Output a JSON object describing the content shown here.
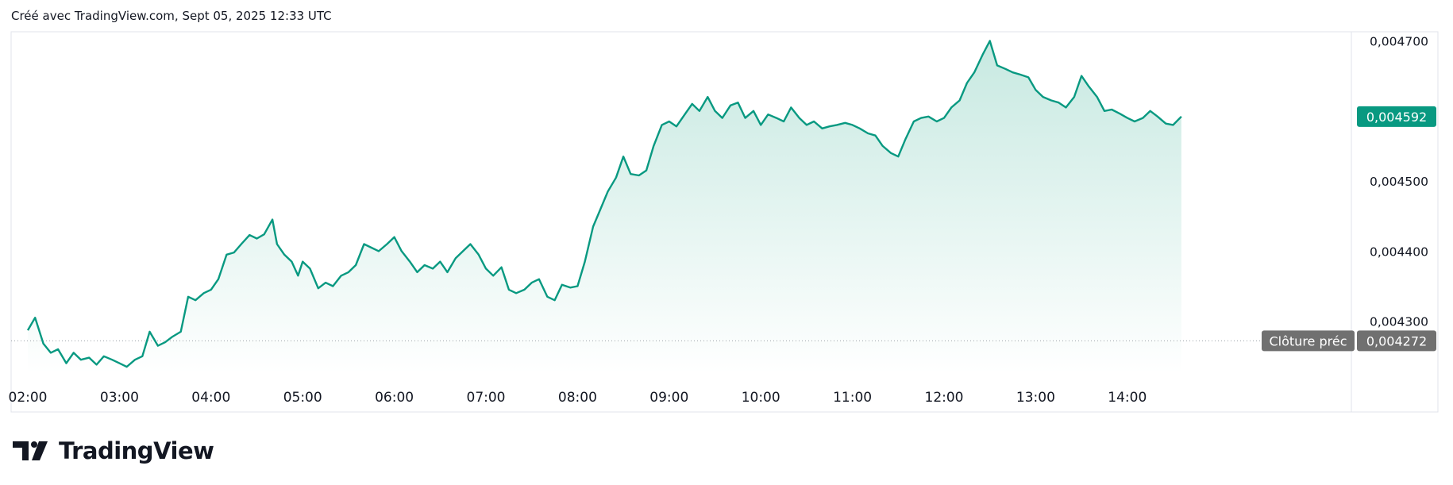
{
  "header": {
    "caption": "Créé avec TradingView.com, Sept 05, 2025 12:33 UTC"
  },
  "brand": {
    "name": "TradingView"
  },
  "colors": {
    "line": "#089981",
    "fill_top": "#c7e9e1",
    "fill_bottom": "#ffffff",
    "prev_close_tag": "#707070",
    "grid": "#e0e3eb"
  },
  "chart_data": {
    "type": "area",
    "title": "",
    "xlabel": "",
    "ylabel": "",
    "x_ticks": [
      "02:00",
      "03:00",
      "04:00",
      "05:00",
      "06:00",
      "07:00",
      "08:00",
      "09:00",
      "10:00",
      "11:00",
      "12:00",
      "13:00",
      "14:00"
    ],
    "y_ticks": [
      "0,004700",
      "0,004600",
      "0,004500",
      "0,004400",
      "0,004300"
    ],
    "y_tick_values": [
      0.0047,
      0.0046,
      0.0045,
      0.0044,
      0.0043
    ],
    "ylim": [
      0.004226,
      0.004713
    ],
    "x_range_hours": [
      2.0,
      14.59
    ],
    "last_price": {
      "value": 0.004592,
      "label": "0,004592"
    },
    "previous_close": {
      "value": 0.004272,
      "label": "0,004272",
      "caption": "Clôture préc"
    },
    "series": [
      {
        "points": [
          [
            2.0,
            0.004287
          ],
          [
            2.08,
            0.004305
          ],
          [
            2.17,
            0.004268
          ],
          [
            2.25,
            0.004255
          ],
          [
            2.33,
            0.00426
          ],
          [
            2.42,
            0.00424
          ],
          [
            2.5,
            0.004255
          ],
          [
            2.58,
            0.004245
          ],
          [
            2.67,
            0.004248
          ],
          [
            2.75,
            0.004238
          ],
          [
            2.83,
            0.00425
          ],
          [
            2.92,
            0.004245
          ],
          [
            3.0,
            0.00424
          ],
          [
            3.08,
            0.004235
          ],
          [
            3.17,
            0.004245
          ],
          [
            3.25,
            0.00425
          ],
          [
            3.33,
            0.004285
          ],
          [
            3.42,
            0.004265
          ],
          [
            3.5,
            0.00427
          ],
          [
            3.58,
            0.004278
          ],
          [
            3.67,
            0.004285
          ],
          [
            3.75,
            0.004335
          ],
          [
            3.83,
            0.00433
          ],
          [
            3.92,
            0.00434
          ],
          [
            4.0,
            0.004345
          ],
          [
            4.08,
            0.00436
          ],
          [
            4.17,
            0.004395
          ],
          [
            4.25,
            0.004398
          ],
          [
            4.33,
            0.00441
          ],
          [
            4.42,
            0.004423
          ],
          [
            4.5,
            0.004418
          ],
          [
            4.58,
            0.004424
          ],
          [
            4.67,
            0.004445
          ],
          [
            4.72,
            0.00441
          ],
          [
            4.8,
            0.004395
          ],
          [
            4.88,
            0.004385
          ],
          [
            4.95,
            0.004365
          ],
          [
            5.0,
            0.004385
          ],
          [
            5.08,
            0.004375
          ],
          [
            5.17,
            0.004347
          ],
          [
            5.25,
            0.004355
          ],
          [
            5.33,
            0.00435
          ],
          [
            5.42,
            0.004365
          ],
          [
            5.5,
            0.00437
          ],
          [
            5.58,
            0.00438
          ],
          [
            5.67,
            0.00441
          ],
          [
            5.75,
            0.004405
          ],
          [
            5.83,
            0.0044
          ],
          [
            5.92,
            0.00441
          ],
          [
            6.0,
            0.00442
          ],
          [
            6.08,
            0.0044
          ],
          [
            6.17,
            0.004385
          ],
          [
            6.25,
            0.00437
          ],
          [
            6.33,
            0.00438
          ],
          [
            6.42,
            0.004375
          ],
          [
            6.5,
            0.004385
          ],
          [
            6.58,
            0.00437
          ],
          [
            6.67,
            0.00439
          ],
          [
            6.75,
            0.0044
          ],
          [
            6.83,
            0.00441
          ],
          [
            6.92,
            0.004395
          ],
          [
            7.0,
            0.004375
          ],
          [
            7.08,
            0.004365
          ],
          [
            7.17,
            0.004377
          ],
          [
            7.25,
            0.004345
          ],
          [
            7.33,
            0.00434
          ],
          [
            7.42,
            0.004345
          ],
          [
            7.5,
            0.004355
          ],
          [
            7.58,
            0.00436
          ],
          [
            7.67,
            0.004335
          ],
          [
            7.75,
            0.00433
          ],
          [
            7.83,
            0.004352
          ],
          [
            7.92,
            0.004348
          ],
          [
            8.0,
            0.00435
          ],
          [
            8.08,
            0.004385
          ],
          [
            8.17,
            0.004435
          ],
          [
            8.25,
            0.00446
          ],
          [
            8.33,
            0.004485
          ],
          [
            8.42,
            0.004505
          ],
          [
            8.5,
            0.004535
          ],
          [
            8.58,
            0.00451
          ],
          [
            8.67,
            0.004508
          ],
          [
            8.75,
            0.004515
          ],
          [
            8.83,
            0.00455
          ],
          [
            8.92,
            0.00458
          ],
          [
            9.0,
            0.004585
          ],
          [
            9.08,
            0.004578
          ],
          [
            9.17,
            0.004595
          ],
          [
            9.25,
            0.00461
          ],
          [
            9.33,
            0.0046
          ],
          [
            9.42,
            0.00462
          ],
          [
            9.5,
            0.0046
          ],
          [
            9.58,
            0.00459
          ],
          [
            9.67,
            0.004608
          ],
          [
            9.75,
            0.004612
          ],
          [
            9.83,
            0.00459
          ],
          [
            9.92,
            0.0046
          ],
          [
            10.0,
            0.00458
          ],
          [
            10.08,
            0.004595
          ],
          [
            10.17,
            0.00459
          ],
          [
            10.25,
            0.004585
          ],
          [
            10.33,
            0.004605
          ],
          [
            10.42,
            0.00459
          ],
          [
            10.5,
            0.00458
          ],
          [
            10.58,
            0.004585
          ],
          [
            10.67,
            0.004575
          ],
          [
            10.75,
            0.004578
          ],
          [
            10.83,
            0.00458
          ],
          [
            10.92,
            0.004583
          ],
          [
            11.0,
            0.00458
          ],
          [
            11.08,
            0.004575
          ],
          [
            11.17,
            0.004568
          ],
          [
            11.25,
            0.004565
          ],
          [
            11.33,
            0.00455
          ],
          [
            11.42,
            0.00454
          ],
          [
            11.5,
            0.004535
          ],
          [
            11.58,
            0.00456
          ],
          [
            11.67,
            0.004585
          ],
          [
            11.75,
            0.00459
          ],
          [
            11.83,
            0.004592
          ],
          [
            11.92,
            0.004585
          ],
          [
            12.0,
            0.00459
          ],
          [
            12.08,
            0.004605
          ],
          [
            12.17,
            0.004615
          ],
          [
            12.25,
            0.00464
          ],
          [
            12.33,
            0.004655
          ],
          [
            12.42,
            0.00468
          ],
          [
            12.5,
            0.0047
          ],
          [
            12.58,
            0.004665
          ],
          [
            12.67,
            0.00466
          ],
          [
            12.75,
            0.004655
          ],
          [
            12.83,
            0.004652
          ],
          [
            12.92,
            0.004648
          ],
          [
            13.0,
            0.00463
          ],
          [
            13.08,
            0.00462
          ],
          [
            13.17,
            0.004615
          ],
          [
            13.25,
            0.004612
          ],
          [
            13.33,
            0.004605
          ],
          [
            13.42,
            0.00462
          ],
          [
            13.5,
            0.00465
          ],
          [
            13.58,
            0.004635
          ],
          [
            13.67,
            0.00462
          ],
          [
            13.75,
            0.0046
          ],
          [
            13.83,
            0.004602
          ],
          [
            13.92,
            0.004596
          ],
          [
            14.0,
            0.00459
          ],
          [
            14.08,
            0.004585
          ],
          [
            14.17,
            0.00459
          ],
          [
            14.25,
            0.0046
          ],
          [
            14.33,
            0.004592
          ],
          [
            14.42,
            0.004582
          ],
          [
            14.5,
            0.00458
          ],
          [
            14.59,
            0.004592
          ]
        ]
      }
    ]
  }
}
